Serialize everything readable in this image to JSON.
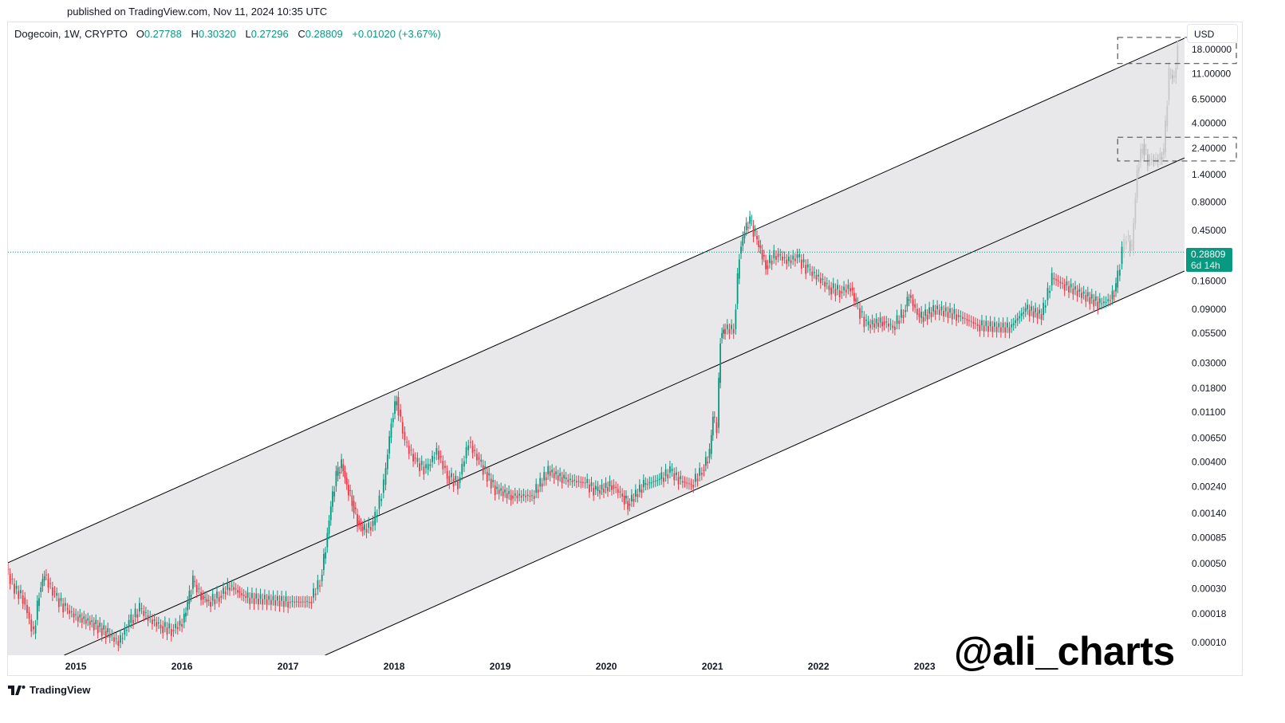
{
  "header": {
    "published": "published on TradingView.com, Nov 11, 2024 10:35 UTC"
  },
  "legend": {
    "symbol": "Dogecoin, 1W, CRYPTO",
    "o_label": "O",
    "open": "0.27788",
    "h_label": "H",
    "high": "0.30320",
    "l_label": "L",
    "low": "0.27296",
    "c_label": "C",
    "close": "0.28809",
    "change": "+0.01020 (+3.67%)"
  },
  "price_axis": {
    "currency": "USD",
    "current_price": "0.28809",
    "countdown": "6d 14h"
  },
  "watermark": "@ali_charts",
  "footer": {
    "brand": "TradingView"
  },
  "colors": {
    "up": "#089981",
    "down": "#f23645",
    "projection": "#c8c8c8",
    "channel_fill": "#e8e8ea",
    "channel_line": "#000000",
    "price_line": "#089981"
  },
  "chart_data": {
    "type": "candlestick",
    "scale": "log",
    "ylim": [
      7.5e-05,
      24
    ],
    "xlim": [
      2014.34,
      2025.43
    ],
    "x_ticks": [
      "2015",
      "2016",
      "2017",
      "2018",
      "2019",
      "2020",
      "2021",
      "2022",
      "2023"
    ],
    "y_ticks": [
      "18.00000",
      "11.00000",
      "6.50000",
      "4.00000",
      "2.40000",
      "1.40000",
      "0.80000",
      "0.45000",
      "0.16000",
      "0.09000",
      "0.05500",
      "0.03000",
      "0.01800",
      "0.01100",
      "0.00650",
      "0.00400",
      "0.00240",
      "0.00140",
      "0.00085",
      "0.00050",
      "0.00030",
      "0.00018",
      "0.00010"
    ],
    "grid": false,
    "channel": {
      "upper": [
        [
          2014.34,
          0.00051
        ],
        [
          2025.43,
          22.6
        ]
      ],
      "middle": [
        [
          2014.87,
          7.73e-05
        ],
        [
          2025.43,
          1.97
        ]
      ],
      "lower": [
        [
          2017.33,
          7.73e-05
        ],
        [
          2025.43,
          0.196
        ]
      ]
    },
    "target_boxes": [
      {
        "from": 2024.8,
        "low": 13.5,
        "high": 23
      },
      {
        "from": 2024.8,
        "low": 1.85,
        "high": 3.0
      }
    ],
    "current_price": 0.28809,
    "closes": [
      [
        2014.34,
        0.00045
      ],
      [
        2014.42,
        0.0003
      ],
      [
        2014.5,
        0.00025
      ],
      [
        2014.56,
        0.00016
      ],
      [
        2014.6,
        0.00012
      ],
      [
        2014.65,
        0.00028
      ],
      [
        2014.7,
        0.0004
      ],
      [
        2014.8,
        0.00026
      ],
      [
        2014.9,
        0.0002
      ],
      [
        2015.0,
        0.00017
      ],
      [
        2015.15,
        0.00015
      ],
      [
        2015.3,
        0.00012
      ],
      [
        2015.4,
        0.0001
      ],
      [
        2015.5,
        0.00015
      ],
      [
        2015.6,
        0.0002
      ],
      [
        2015.7,
        0.00016
      ],
      [
        2015.8,
        0.00014
      ],
      [
        2015.9,
        0.00013
      ],
      [
        2016.0,
        0.00015
      ],
      [
        2016.05,
        0.00022
      ],
      [
        2016.1,
        0.00035
      ],
      [
        2016.18,
        0.00026
      ],
      [
        2016.25,
        0.00023
      ],
      [
        2016.35,
        0.00026
      ],
      [
        2016.45,
        0.00032
      ],
      [
        2016.6,
        0.00025
      ],
      [
        2016.8,
        0.00024
      ],
      [
        2017.0,
        0.00023
      ],
      [
        2017.2,
        0.00023
      ],
      [
        2017.3,
        0.00035
      ],
      [
        2017.35,
        0.0007
      ],
      [
        2017.4,
        0.0016
      ],
      [
        2017.45,
        0.003
      ],
      [
        2017.5,
        0.0038
      ],
      [
        2017.55,
        0.0025
      ],
      [
        2017.6,
        0.0018
      ],
      [
        2017.65,
        0.0012
      ],
      [
        2017.7,
        0.001
      ],
      [
        2017.8,
        0.0011
      ],
      [
        2017.9,
        0.0025
      ],
      [
        2017.97,
        0.009
      ],
      [
        2018.02,
        0.015
      ],
      [
        2018.06,
        0.009
      ],
      [
        2018.1,
        0.006
      ],
      [
        2018.2,
        0.004
      ],
      [
        2018.3,
        0.0034
      ],
      [
        2018.4,
        0.005
      ],
      [
        2018.5,
        0.003
      ],
      [
        2018.6,
        0.0026
      ],
      [
        2018.7,
        0.006
      ],
      [
        2018.8,
        0.004
      ],
      [
        2018.95,
        0.0023
      ],
      [
        2019.1,
        0.002
      ],
      [
        2019.3,
        0.002
      ],
      [
        2019.45,
        0.0033
      ],
      [
        2019.6,
        0.0028
      ],
      [
        2019.8,
        0.0026
      ],
      [
        2019.9,
        0.0022
      ],
      [
        2020.05,
        0.0025
      ],
      [
        2020.15,
        0.002
      ],
      [
        2020.2,
        0.0017
      ],
      [
        2020.35,
        0.0025
      ],
      [
        2020.5,
        0.0028
      ],
      [
        2020.6,
        0.0033
      ],
      [
        2020.7,
        0.0027
      ],
      [
        2020.8,
        0.0025
      ],
      [
        2020.9,
        0.0034
      ],
      [
        2020.97,
        0.0047
      ],
      [
        2021.0,
        0.01
      ],
      [
        2021.04,
        0.008
      ],
      [
        2021.07,
        0.05
      ],
      [
        2021.1,
        0.06
      ],
      [
        2021.2,
        0.06
      ],
      [
        2021.25,
        0.28
      ],
      [
        2021.3,
        0.45
      ],
      [
        2021.35,
        0.55
      ],
      [
        2021.4,
        0.4
      ],
      [
        2021.45,
        0.3
      ],
      [
        2021.5,
        0.22
      ],
      [
        2021.6,
        0.28
      ],
      [
        2021.7,
        0.24
      ],
      [
        2021.8,
        0.26
      ],
      [
        2021.9,
        0.2
      ],
      [
        2022.0,
        0.17
      ],
      [
        2022.1,
        0.14
      ],
      [
        2022.2,
        0.13
      ],
      [
        2022.3,
        0.14
      ],
      [
        2022.35,
        0.1
      ],
      [
        2022.45,
        0.065
      ],
      [
        2022.6,
        0.07
      ],
      [
        2022.7,
        0.063
      ],
      [
        2022.8,
        0.085
      ],
      [
        2022.85,
        0.12
      ],
      [
        2022.95,
        0.075
      ],
      [
        2023.1,
        0.09
      ],
      [
        2023.3,
        0.08
      ],
      [
        2023.5,
        0.065
      ],
      [
        2023.7,
        0.062
      ],
      [
        2023.8,
        0.062
      ],
      [
        2023.95,
        0.09
      ],
      [
        2024.1,
        0.08
      ],
      [
        2024.2,
        0.17
      ],
      [
        2024.3,
        0.15
      ],
      [
        2024.5,
        0.12
      ],
      [
        2024.65,
        0.1
      ],
      [
        2024.75,
        0.11
      ],
      [
        2024.8,
        0.14
      ],
      [
        2024.86,
        0.288
      ]
    ],
    "projection": [
      [
        2024.86,
        0.288
      ],
      [
        2024.9,
        0.4
      ],
      [
        2024.95,
        0.3
      ],
      [
        2025.0,
        1.5
      ],
      [
        2025.05,
        2.6
      ],
      [
        2025.1,
        1.9
      ],
      [
        2025.2,
        1.9
      ],
      [
        2025.25,
        2.2
      ],
      [
        2025.3,
        11
      ],
      [
        2025.35,
        10
      ],
      [
        2025.38,
        18
      ]
    ]
  }
}
